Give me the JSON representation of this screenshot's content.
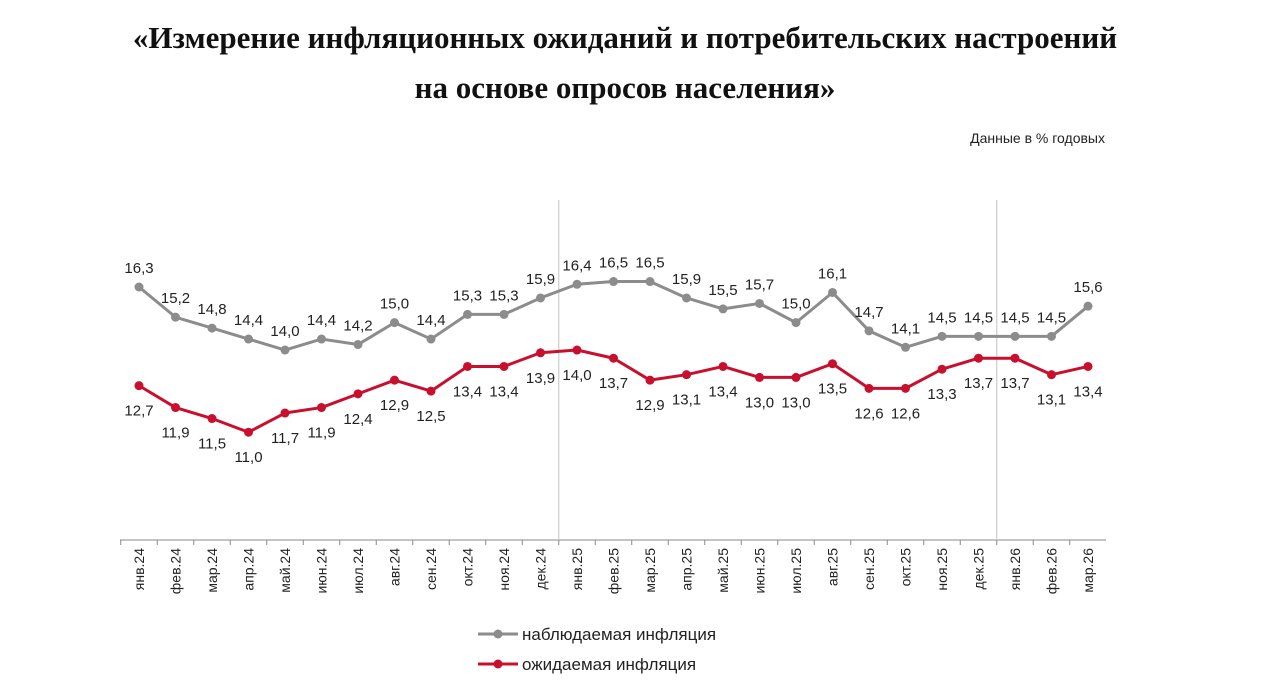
{
  "title_line1": "«Измерение инфляционных ожиданий и потребительских настроений",
  "title_line2": "на основе опросов населения»",
  "units_note": "Данные в % годовых",
  "chart_data": {
    "type": "line",
    "categories": [
      "янв.24",
      "фев.24",
      "мар.24",
      "апр.24",
      "май.24",
      "июн.24",
      "июл.24",
      "авг.24",
      "сен.24",
      "окт.24",
      "ноя.24",
      "дек.24",
      "янв.25",
      "фев.25",
      "мар.25",
      "апр.25",
      "май.25",
      "июн.25",
      "июл.25",
      "авг.25",
      "сен.25",
      "окт.25",
      "ноя.25",
      "дек.25",
      "янв.26",
      "фев.26",
      "мар.26"
    ],
    "series": [
      {
        "name": "наблюдаемая инфляция",
        "color": "#8c8c8c",
        "values": [
          16.3,
          15.2,
          14.8,
          14.4,
          14.0,
          14.4,
          14.2,
          15.0,
          14.4,
          15.3,
          15.3,
          15.9,
          16.4,
          16.5,
          16.5,
          15.9,
          15.5,
          15.7,
          15.0,
          16.1,
          14.7,
          14.1,
          14.5,
          14.5,
          14.5,
          14.5,
          15.6
        ]
      },
      {
        "name": "ожидаемая инфляция",
        "color": "#c8102e",
        "values": [
          12.7,
          11.9,
          11.5,
          11.0,
          11.7,
          11.9,
          12.4,
          12.9,
          12.5,
          13.4,
          13.4,
          13.9,
          14.0,
          13.7,
          12.9,
          13.1,
          13.4,
          13.0,
          13.0,
          13.5,
          12.6,
          12.6,
          13.3,
          13.7,
          13.7,
          13.1,
          13.4
        ]
      }
    ],
    "year_separators": [
      "янв.25",
      "янв.26"
    ],
    "ylim": [
      7.1,
      18.5
    ],
    "grid": false,
    "yaxis_visible": false,
    "legend_placement": "bottom",
    "decimal_separator": ","
  }
}
